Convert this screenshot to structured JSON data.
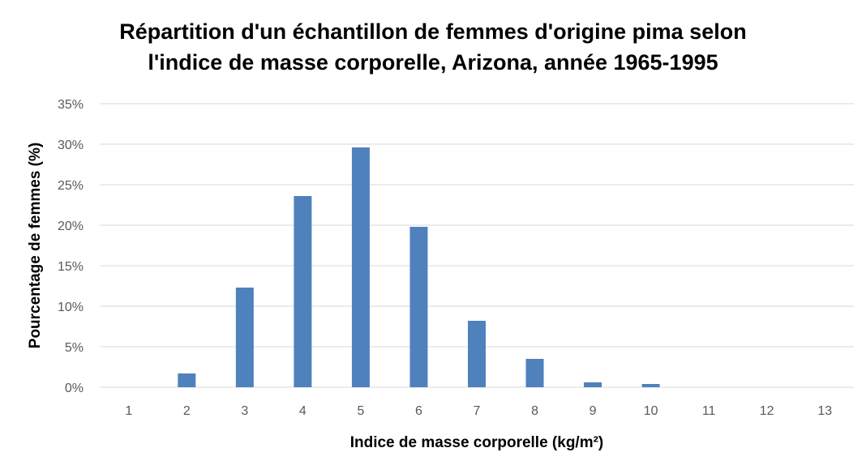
{
  "chart_data": {
    "type": "bar",
    "title_lines": [
      "Répartition d'un échantillon de femmes d'origine pima selon",
      "l'indice de masse corporelle, Arizona, année 1965-1995"
    ],
    "xlabel": "Indice de masse corporelle (kg/m²)",
    "ylabel": "Pourcentage de femmes (%)",
    "categories": [
      "1",
      "2",
      "3",
      "4",
      "5",
      "6",
      "7",
      "8",
      "9",
      "10",
      "11",
      "12",
      "13"
    ],
    "values": [
      0.0,
      1.7,
      12.3,
      23.6,
      29.6,
      19.8,
      8.2,
      3.5,
      0.6,
      0.4,
      0.0,
      0.0,
      0.0
    ],
    "ylim": [
      0,
      35
    ],
    "yticks": [
      "0%",
      "5%",
      "10%",
      "15%",
      "20%",
      "25%",
      "30%",
      "35%"
    ],
    "bar_color": "#4f81bd",
    "grid": true,
    "grid_color": "#d9d9d9"
  }
}
